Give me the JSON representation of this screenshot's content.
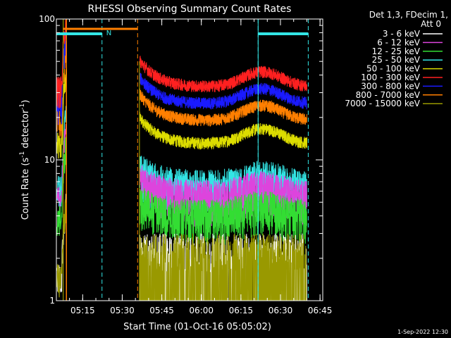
{
  "chart_data": {
    "type": "line",
    "title": "RHESSI Observing Summary Count Rates",
    "xlabel": "Start Time (01-Oct-16 05:05:02)",
    "ylabel": "Count Rate (s",
    "ylabel_sup": "-1",
    "ylabel_tail": " detector",
    "ylabel_end": ")",
    "yscale": "log",
    "ylim": [
      1,
      100
    ],
    "xlim_minutes": [
      0,
      101
    ],
    "yticks": [
      {
        "value": 1,
        "label": "1"
      },
      {
        "value": 10,
        "label": "10"
      },
      {
        "value": 100,
        "label": "100"
      }
    ],
    "xticks": [
      {
        "minute": 9.97,
        "label": "05:15"
      },
      {
        "minute": 24.97,
        "label": "05:30"
      },
      {
        "minute": 39.97,
        "label": "05:45"
      },
      {
        "minute": 54.97,
        "label": "06:00"
      },
      {
        "minute": 69.97,
        "label": "06:15"
      },
      {
        "minute": 84.97,
        "label": "06:30"
      },
      {
        "minute": 99.97,
        "label": "06:45"
      }
    ],
    "legend_header": [
      "Det 1,3, FDecim 1,",
      "Att 0"
    ],
    "legend_position": "right",
    "series": [
      {
        "name": "3 - 6 keV",
        "color": "#ffffff",
        "level": 1.6
      },
      {
        "name": "6 - 12 keV",
        "color": "#dd44dd",
        "level": 5.5
      },
      {
        "name": "12 - 25 keV",
        "color": "#33dd33",
        "level": 4.0
      },
      {
        "name": "25 - 50 keV",
        "color": "#33e5e5",
        "level": 6.5
      },
      {
        "name": "50 - 100 keV",
        "color": "#dddd00",
        "level": 13
      },
      {
        "name": "100 - 300 keV",
        "color": "#ff2020",
        "level": 33
      },
      {
        "name": "300 - 800 keV",
        "color": "#1a1aff",
        "level": 25
      },
      {
        "name": "800 - 7000 keV",
        "color": "#ff7f00",
        "level": 19
      },
      {
        "name": "7000 - 15000 keV",
        "color": "#999900",
        "level": 1.5
      }
    ],
    "night_intervals": [
      [
        0,
        17.3
      ],
      [
        76.5,
        95.5
      ]
    ],
    "night_label": "N",
    "orbit_markers": [
      17.3,
      30.8,
      76.5,
      95.5
    ],
    "saa_marker": 30.8,
    "data_gap": [
      3.8,
      31.5
    ],
    "timestamp": "1-Sep-2022 12:30"
  }
}
